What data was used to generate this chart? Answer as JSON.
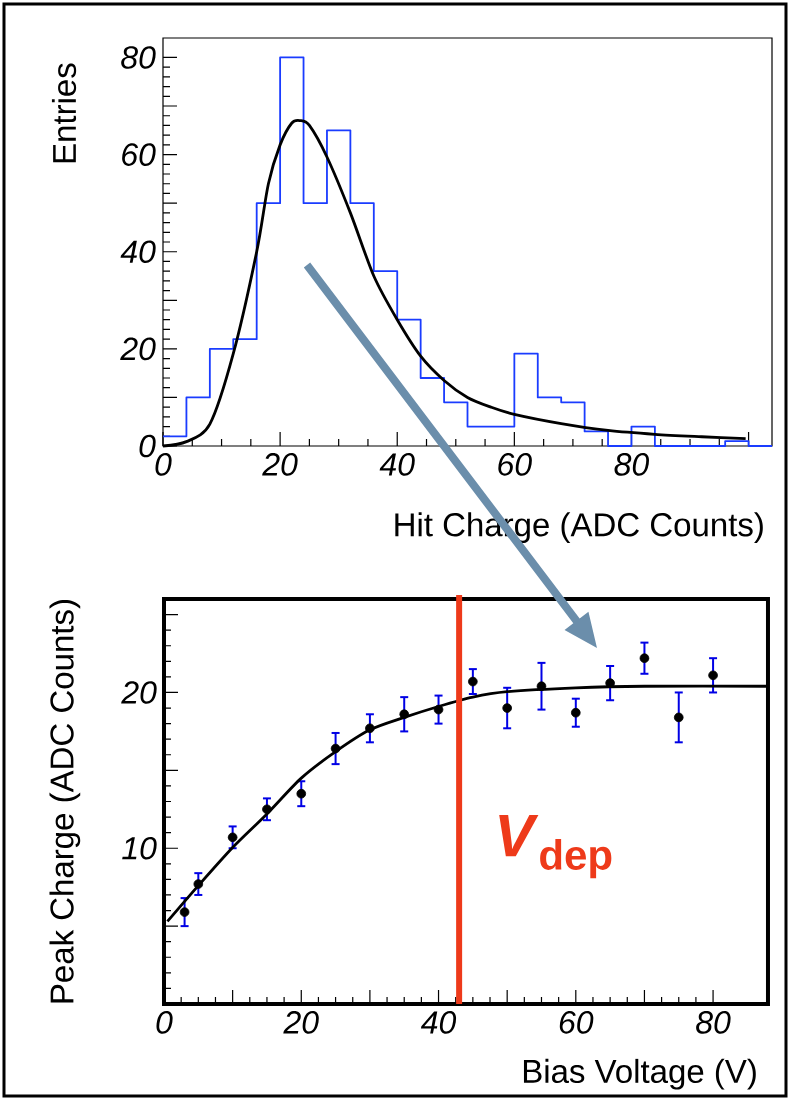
{
  "chart_data": [
    {
      "type": "histogram",
      "xlabel": "Hit Charge (ADC Counts)",
      "ylabel": "Entries",
      "xlim": [
        0,
        104
      ],
      "ylim": [
        0,
        84
      ],
      "xticks": [
        0,
        20,
        40,
        60,
        80,
        {
          "value": 100,
          "label": null
        }
      ],
      "yticks": [
        0,
        {
          "value": 10,
          "label": null
        },
        20,
        {
          "value": 30,
          "label": null
        },
        40,
        {
          "value": 50,
          "label": null
        },
        60,
        {
          "value": 70,
          "label": null
        },
        80
      ],
      "series": [
        {
          "color": "#1a3cff",
          "bins": [
            0,
            4,
            8,
            12,
            16,
            20,
            24,
            28,
            32,
            36,
            40,
            44,
            48,
            52,
            56,
            60,
            64,
            68,
            72,
            76,
            80,
            84,
            88,
            92,
            96,
            100,
            104
          ],
          "values": [
            2,
            10,
            20,
            22,
            50,
            80,
            50,
            65,
            50,
            36,
            26,
            14,
            9,
            4,
            4,
            19,
            10,
            9,
            3,
            0,
            4,
            0,
            0,
            0,
            1,
            0
          ]
        },
        {
          "type": "line",
          "color": "#000000",
          "x": [
            0,
            4,
            8,
            12,
            16,
            18,
            20,
            22,
            23.4,
            25,
            28,
            32,
            36,
            40,
            44,
            48,
            52,
            56,
            60,
            68,
            76,
            84,
            92,
            99.5
          ],
          "values": [
            0,
            0.9,
            4.5,
            19,
            40,
            54,
            62,
            66.5,
            67,
            66,
            59.5,
            48,
            35,
            26,
            18.5,
            13.5,
            10,
            8,
            6.5,
            4.6,
            3.2,
            2.4,
            1.9,
            1.5
          ]
        }
      ]
    },
    {
      "type": "scatter",
      "xlabel": "Bias Voltage (V)",
      "ylabel": "Peak Charge (ADC Counts)",
      "xlim": [
        0,
        88
      ],
      "ylim": [
        0,
        26
      ],
      "xticks": [
        0,
        {
          "value": 10,
          "label": null
        },
        20,
        {
          "value": 30,
          "label": null
        },
        40,
        {
          "value": 50,
          "label": null
        },
        60,
        {
          "value": 70,
          "label": null
        },
        80
      ],
      "yticks": [
        {
          "value": 0,
          "label": null
        },
        {
          "value": 5,
          "label": null
        },
        10,
        {
          "value": 15,
          "label": null
        },
        20,
        {
          "value": 25,
          "label": null
        }
      ],
      "series": [
        {
          "marker": "circle",
          "color": "#000000",
          "x": [
            3,
            5,
            10,
            15,
            20,
            25,
            30,
            35,
            40,
            45,
            50,
            55,
            60,
            65,
            70,
            75,
            80
          ],
          "values": [
            5.9,
            7.7,
            10.7,
            12.5,
            13.5,
            16.4,
            17.7,
            18.6,
            18.9,
            20.7,
            19.0,
            20.4,
            18.7,
            20.6,
            22.2,
            18.4,
            21.1
          ],
          "errors": [
            0.9,
            0.7,
            0.7,
            0.7,
            0.8,
            1.0,
            0.9,
            1.1,
            0.9,
            0.8,
            1.3,
            1.5,
            0.9,
            1.1,
            1.0,
            1.6,
            1.1
          ]
        },
        {
          "type": "line",
          "color": "#000000",
          "x": [
            0.5,
            5,
            10,
            15,
            20,
            25,
            30,
            35,
            40,
            45,
            50,
            60,
            70,
            88
          ],
          "values": [
            5.3,
            7.6,
            10.05,
            12.2,
            14.5,
            16.2,
            17.6,
            18.4,
            19.1,
            19.7,
            20.05,
            20.3,
            20.4,
            20.4
          ]
        }
      ],
      "ref_lines": [
        {
          "axis": "x",
          "value": 43,
          "label": "*V*$_{dep}$",
          "color": "#ee3a1a"
        }
      ]
    }
  ]
}
